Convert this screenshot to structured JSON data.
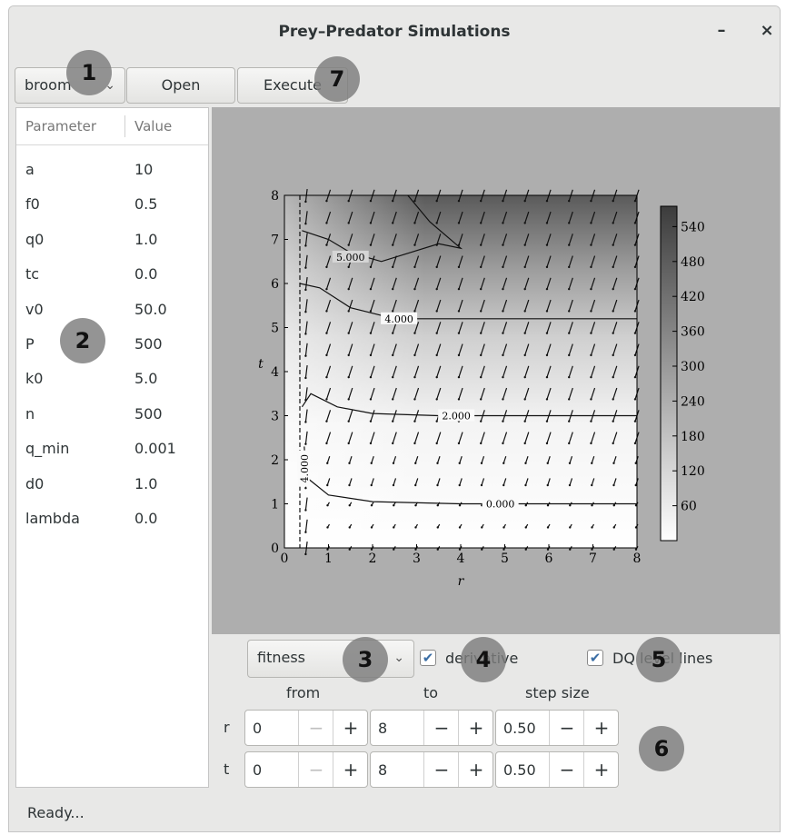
{
  "window": {
    "title": "Prey–Predator Simulations",
    "minimize": "–",
    "close": "×"
  },
  "toolbar": {
    "model_combo": "broom",
    "open_label": "Open",
    "execute_label": "Execute"
  },
  "badges": [
    "1",
    "2",
    "3",
    "4",
    "5",
    "6",
    "7"
  ],
  "params": {
    "col_param": "Parameter",
    "col_value": "Value",
    "rows": [
      {
        "name": "a",
        "value": "10"
      },
      {
        "name": "f0",
        "value": "0.5"
      },
      {
        "name": "q0",
        "value": "1.0"
      },
      {
        "name": "tc",
        "value": "0.0"
      },
      {
        "name": "v0",
        "value": "50.0"
      },
      {
        "name": "P",
        "value": "500"
      },
      {
        "name": "k0",
        "value": "5.0"
      },
      {
        "name": "n",
        "value": "500"
      },
      {
        "name": "q_min",
        "value": "0.001"
      },
      {
        "name": "d0",
        "value": "1.0"
      },
      {
        "name": "lambda",
        "value": "0.0"
      }
    ]
  },
  "controls": {
    "quantity_combo": "fitness",
    "derivative_label": "derivative",
    "derivative_checked": true,
    "dq_label": "DQ level lines",
    "dq_checked": true
  },
  "range": {
    "from_label": "from",
    "to_label": "to",
    "step_label": "step size",
    "rows": [
      {
        "label": "r",
        "from": "0",
        "to": "8",
        "step": "0.50"
      },
      {
        "label": "t",
        "from": "0",
        "to": "8",
        "step": "0.50"
      }
    ],
    "minus": "−",
    "plus": "+"
  },
  "status": "Ready...",
  "chart_data": {
    "type": "heatmap",
    "xlabel": "r",
    "ylabel": "t",
    "xlim": [
      0,
      8
    ],
    "ylim": [
      0,
      8
    ],
    "xticks": [
      "0",
      "1",
      "2",
      "3",
      "4",
      "5",
      "6",
      "7",
      "8"
    ],
    "yticks": [
      "0",
      "1",
      "2",
      "3",
      "4",
      "5",
      "6",
      "7",
      "8"
    ],
    "colorbar_ticks": [
      "60",
      "120",
      "180",
      "240",
      "300",
      "360",
      "420",
      "480",
      "540"
    ],
    "colorbar_range": [
      0,
      575
    ],
    "colormap": [
      "#ffffff",
      "#3c3c3c"
    ],
    "contours": [
      {
        "label": "0.000",
        "points": [
          [
            0.45,
            2.3
          ],
          [
            0.5,
            1.6
          ],
          [
            1.0,
            1.2
          ],
          [
            2.0,
            1.05
          ],
          [
            4.0,
            1.0
          ],
          [
            8,
            1.0
          ]
        ]
      },
      {
        "label": "2.000",
        "points": [
          [
            0.4,
            3.2
          ],
          [
            0.6,
            3.5
          ],
          [
            1.2,
            3.2
          ],
          [
            2.0,
            3.05
          ],
          [
            3.5,
            3.0
          ],
          [
            8,
            3.0
          ]
        ]
      },
      {
        "label": "4.000",
        "points": [
          [
            0.35,
            6.0
          ],
          [
            0.8,
            5.9
          ],
          [
            1.5,
            5.45
          ],
          [
            2.5,
            5.2
          ],
          [
            4.0,
            5.2
          ],
          [
            8,
            5.2
          ]
        ]
      },
      {
        "label": "5.000",
        "points": [
          [
            0.4,
            7.2
          ],
          [
            1.0,
            7.0
          ],
          [
            1.5,
            6.7
          ],
          [
            2.2,
            6.5
          ],
          [
            3.5,
            6.9
          ],
          [
            4.0,
            6.8
          ],
          [
            3.3,
            7.4
          ],
          [
            2.8,
            8.0
          ]
        ]
      },
      {
        "label": "4.000",
        "points": [
          [
            0.35,
            8
          ],
          [
            0.35,
            0
          ]
        ]
      }
    ]
  }
}
